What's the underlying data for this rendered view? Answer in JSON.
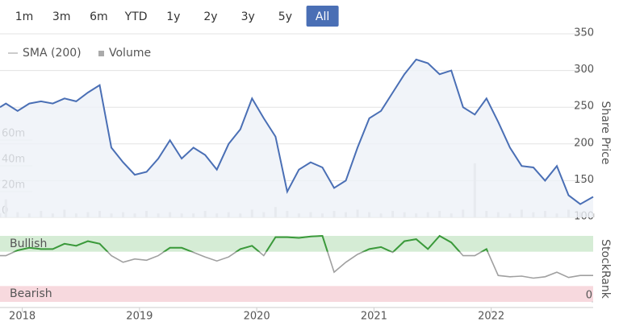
{
  "range_buttons": [
    "1m",
    "3m",
    "6m",
    "YTD",
    "1y",
    "2y",
    "3y",
    "5y",
    "All"
  ],
  "selected_button": 8,
  "chart_data": [
    {
      "type": "line",
      "y_label": "Share Price",
      "legend": [
        {
          "name": "SMA (200)",
          "color": "#cccccc",
          "symbol": "line"
        },
        {
          "name": "Volume",
          "color": "#aaaaaa",
          "symbol": "square"
        }
      ],
      "x": [
        2017.81,
        2017.86,
        2017.96,
        2018.06,
        2018.16,
        2018.26,
        2018.36,
        2018.46,
        2018.56,
        2018.66,
        2018.76,
        2018.86,
        2018.96,
        2019.06,
        2019.16,
        2019.26,
        2019.36,
        2019.46,
        2019.56,
        2019.66,
        2019.76,
        2019.86,
        2019.96,
        2020.06,
        2020.16,
        2020.26,
        2020.36,
        2020.46,
        2020.56,
        2020.66,
        2020.76,
        2020.86,
        2020.96,
        2021.06,
        2021.16,
        2021.26,
        2021.36,
        2021.46,
        2021.56,
        2021.66,
        2021.76,
        2021.86,
        2021.96,
        2022.06,
        2022.16,
        2022.26,
        2022.36,
        2022.46,
        2022.56,
        2022.66,
        2022.76,
        2022.87
      ],
      "values": [
        250,
        255,
        245,
        255,
        258,
        255,
        262,
        258,
        270,
        280,
        195,
        175,
        158,
        162,
        180,
        205,
        180,
        195,
        185,
        165,
        200,
        220,
        262,
        235,
        210,
        135,
        165,
        175,
        168,
        140,
        150,
        195,
        235,
        245,
        270,
        295,
        315,
        310,
        295,
        300,
        250,
        240,
        262,
        230,
        195,
        170,
        168,
        150,
        170,
        130,
        118,
        128
      ],
      "color": "#4a6fb5",
      "fill_color": "#eef1f8",
      "xlim": [
        2017.81,
        2022.87
      ],
      "ylim": [
        100,
        350
      ],
      "yticks": [
        100,
        150,
        200,
        250,
        300,
        350
      ],
      "grid": true,
      "volume": {
        "values": [
          3,
          14,
          4,
          3,
          5,
          3,
          6,
          3,
          4,
          5,
          3,
          4,
          3,
          5,
          3,
          4,
          3,
          3,
          5,
          3,
          4,
          3,
          6,
          4,
          8,
          5,
          3,
          4,
          3,
          5,
          4,
          6,
          4,
          3,
          5,
          4,
          3,
          4,
          5,
          3,
          6,
          42,
          5,
          4,
          3,
          6,
          4,
          5,
          3,
          6,
          4,
          3
        ],
        "color": "#cccccc",
        "ylim": [
          0,
          142.5
        ],
        "yticks": [
          0,
          {
            "value": 20,
            "label": "20m"
          },
          {
            "value": 40,
            "label": "40m"
          },
          {
            "value": 60,
            "label": "60m"
          }
        ]
      }
    },
    {
      "type": "line",
      "y_label": "StockRank",
      "x": [
        2017.81,
        2017.86,
        2017.96,
        2018.06,
        2018.16,
        2018.26,
        2018.36,
        2018.46,
        2018.56,
        2018.66,
        2018.76,
        2018.86,
        2018.96,
        2019.06,
        2019.16,
        2019.26,
        2019.36,
        2019.46,
        2019.56,
        2019.66,
        2019.76,
        2019.86,
        2019.96,
        2020.06,
        2020.16,
        2020.26,
        2020.36,
        2020.46,
        2020.56,
        2020.66,
        2020.76,
        2020.86,
        2020.96,
        2021.06,
        2021.16,
        2021.26,
        2021.36,
        2021.46,
        2021.56,
        2021.66,
        2021.76,
        2021.86,
        2021.96,
        2022.06,
        2022.16,
        2022.26,
        2022.36,
        2022.46,
        2022.56,
        2022.66,
        2022.76,
        2022.87
      ],
      "values": [
        70,
        70,
        78,
        82,
        80,
        80,
        88,
        85,
        92,
        88,
        70,
        60,
        65,
        63,
        70,
        82,
        82,
        75,
        68,
        62,
        68,
        80,
        85,
        70,
        98,
        98,
        97,
        99,
        100,
        45,
        60,
        72,
        80,
        83,
        75,
        92,
        95,
        80,
        100,
        90,
        70,
        70,
        80,
        40,
        38,
        39,
        36,
        38,
        45,
        37,
        40,
        40
      ],
      "color": "#a0a0a0",
      "xlim": [
        2017.81,
        2022.87
      ],
      "xticks": [
        2018,
        2019,
        2020,
        2021,
        2022
      ],
      "ylim": [
        0,
        100
      ],
      "yticks": [
        0
      ],
      "bands": [
        {
          "label": "Bullish",
          "range": [
            76,
            100
          ],
          "color": "#d5ecd5",
          "label_color": "#3a8a3a",
          "line_color": "#3a9a3a"
        },
        {
          "label": "Bearish",
          "range": [
            0,
            24
          ],
          "color": "#f7d9de",
          "label_color": "#c0394a",
          "line_color": "#c0394a"
        }
      ]
    }
  ]
}
